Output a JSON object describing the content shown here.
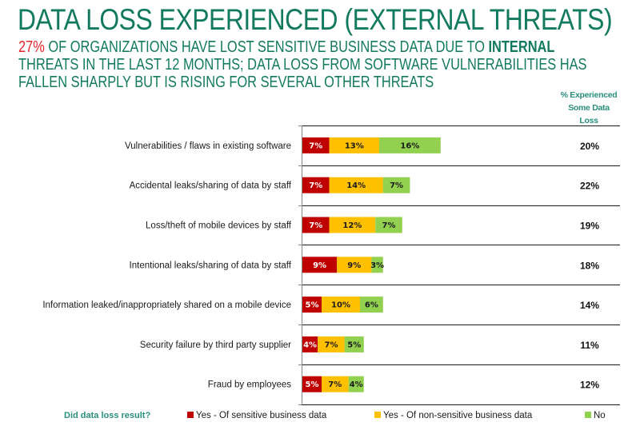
{
  "header": {
    "title": "DATA LOSS EXPERIENCED (EXTERNAL THREATS)",
    "subtitle_highlight": "27%",
    "subtitle_part1": " OF ORGANIZATIONS HAVE LOST SENSITIVE BUSINESS DATA DUE TO ",
    "subtitle_bold": "INTERNAL",
    "subtitle_line2": "THREATS IN THE LAST 12 MONTHS; DATA LOSS FROM SOFTWARE VULNERABILITIES HAS",
    "subtitle_line3": "FALLEN SHARPLY BUT IS RISING FOR SEVERAL OTHER THREATS"
  },
  "column_header": {
    "line1": "% Experienced",
    "line2": "Some Data",
    "line3": "Loss"
  },
  "legend": {
    "title": "Did data loss result?"
  },
  "colors": {
    "title": "#127a5e",
    "highlight": "#e3262b",
    "sensitive": "#c00000",
    "non_sensitive": "#ffc000",
    "no": "#92d050"
  },
  "chart_data": {
    "type": "bar",
    "orientation": "horizontal",
    "stacked": true,
    "title": "DATA LOSS EXPERIENCED (EXTERNAL THREATS)",
    "xlabel": "",
    "ylabel": "",
    "grid": false,
    "legend_position": "bottom",
    "categories": [
      "Vulnerabilities / flaws in existing software",
      "Accidental leaks/sharing of data by staff",
      "Loss/theft of mobile devices by staff",
      "Intentional leaks/sharing of data by staff",
      "Information leaked/inappropriately shared on a mobile device",
      "Security failure by third party supplier",
      "Fraud by employees"
    ],
    "series": [
      {
        "name": "Yes - Of sensitive business data",
        "color": "#c00000",
        "label_color": "#ffffff",
        "values": [
          7,
          7,
          7,
          9,
          5,
          4,
          5
        ]
      },
      {
        "name": "Yes - Of non-sensitive business data",
        "color": "#ffc000",
        "label_color": "#1a1a1a",
        "values": [
          13,
          14,
          12,
          9,
          10,
          7,
          7
        ]
      },
      {
        "name": "No",
        "color": "#92d050",
        "label_color": "#1a1a1a",
        "values": [
          16,
          7,
          7,
          3,
          6,
          5,
          4
        ]
      }
    ],
    "side_column": {
      "header": "% Experienced Some Data Loss",
      "values": [
        "20%",
        "22%",
        "19%",
        "18%",
        "14%",
        "11%",
        "12%"
      ]
    }
  }
}
